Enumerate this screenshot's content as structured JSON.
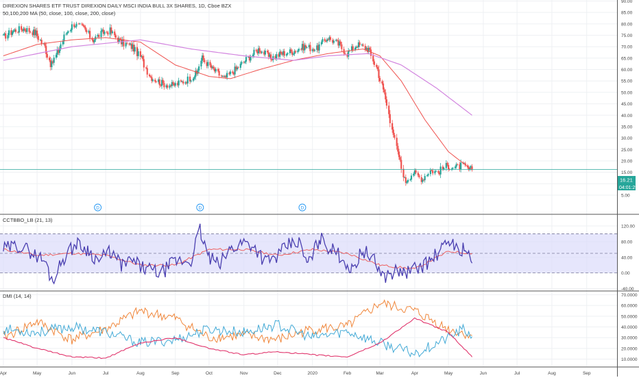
{
  "header": {
    "title": "DIREXION SHARES ETF TRUST DIREXION DAILY MSCI INDIA BULL 3X SHARES, 1D, Cboe BZX",
    "ma_label": "50,100,200 MA (50, close, 100, close, 200, close)"
  },
  "colors": {
    "grid": "#eef0f3",
    "axis_text": "#444444",
    "separator": "#555555",
    "up": "#26a69a",
    "down": "#ef5350",
    "ma50": "#ef5350",
    "ma200": "#d284df",
    "price_line": "#26a69a",
    "cct_line": "#4a3fb0",
    "cct_signal": "#ef5350",
    "cct_band": "#dcdcfb",
    "dmi_plus": "#41a9d6",
    "dmi_minus": "#f0863a",
    "adx": "#e0336b"
  },
  "current_price": {
    "value": "16.21",
    "countdown": "04:01:29"
  },
  "dividend_marker_label": "D",
  "chart_data": [
    {
      "type": "candlestick",
      "panel": "price",
      "title": "DIREXION SHARES ETF TRUST DIREXION DAILY MSCI INDIA BULL 3X SHARES, 1D, Cboe BZX",
      "ylim": [
        0,
        90
      ],
      "y_ticks": [
        "5.00",
        "10.00",
        "15.00",
        "20.00",
        "25.00",
        "30.00",
        "35.00",
        "40.00",
        "45.00",
        "50.00",
        "55.00",
        "60.00",
        "65.00",
        "70.00",
        "75.00",
        "80.00",
        "85.00",
        "90.00"
      ],
      "x_ticks": [
        "Apr",
        "May",
        "Jun",
        "Jul",
        "Aug",
        "Sep",
        "Oct",
        "Nov",
        "Dec",
        "2020",
        "Feb",
        "Mar",
        "Apr",
        "May",
        "Jun",
        "Jul",
        "Aug",
        "Sep"
      ],
      "close_series": [
        {
          "t": "2019-04-01",
          "v": 74
        },
        {
          "t": "2019-04-10",
          "v": 77
        },
        {
          "t": "2019-04-20",
          "v": 78
        },
        {
          "t": "2019-04-30",
          "v": 76
        },
        {
          "t": "2019-05-08",
          "v": 70
        },
        {
          "t": "2019-05-14",
          "v": 62
        },
        {
          "t": "2019-05-20",
          "v": 68
        },
        {
          "t": "2019-05-27",
          "v": 76
        },
        {
          "t": "2019-06-03",
          "v": 80
        },
        {
          "t": "2019-06-12",
          "v": 78
        },
        {
          "t": "2019-06-20",
          "v": 73
        },
        {
          "t": "2019-06-28",
          "v": 76
        },
        {
          "t": "2019-07-05",
          "v": 77
        },
        {
          "t": "2019-07-15",
          "v": 72
        },
        {
          "t": "2019-07-25",
          "v": 70
        },
        {
          "t": "2019-08-02",
          "v": 65
        },
        {
          "t": "2019-08-10",
          "v": 57
        },
        {
          "t": "2019-08-20",
          "v": 54
        },
        {
          "t": "2019-08-30",
          "v": 53
        },
        {
          "t": "2019-09-10",
          "v": 55
        },
        {
          "t": "2019-09-20",
          "v": 58
        },
        {
          "t": "2019-09-25",
          "v": 65
        },
        {
          "t": "2019-10-05",
          "v": 60
        },
        {
          "t": "2019-10-15",
          "v": 56
        },
        {
          "t": "2019-10-25",
          "v": 60
        },
        {
          "t": "2019-11-05",
          "v": 65
        },
        {
          "t": "2019-11-15",
          "v": 69
        },
        {
          "t": "2019-11-25",
          "v": 65
        },
        {
          "t": "2019-12-05",
          "v": 67
        },
        {
          "t": "2019-12-15",
          "v": 68
        },
        {
          "t": "2019-12-25",
          "v": 70
        },
        {
          "t": "2020-01-05",
          "v": 69
        },
        {
          "t": "2020-01-15",
          "v": 74
        },
        {
          "t": "2020-01-25",
          "v": 71
        },
        {
          "t": "2020-02-01",
          "v": 67
        },
        {
          "t": "2020-02-10",
          "v": 71
        },
        {
          "t": "2020-02-20",
          "v": 69
        },
        {
          "t": "2020-02-28",
          "v": 60
        },
        {
          "t": "2020-03-05",
          "v": 50
        },
        {
          "t": "2020-03-12",
          "v": 35
        },
        {
          "t": "2020-03-18",
          "v": 22
        },
        {
          "t": "2020-03-24",
          "v": 11
        },
        {
          "t": "2020-03-31",
          "v": 15
        },
        {
          "t": "2020-04-08",
          "v": 12
        },
        {
          "t": "2020-04-15",
          "v": 16
        },
        {
          "t": "2020-04-22",
          "v": 15
        },
        {
          "t": "2020-04-30",
          "v": 18
        },
        {
          "t": "2020-05-07",
          "v": 17
        },
        {
          "t": "2020-05-14",
          "v": 18
        },
        {
          "t": "2020-05-20",
          "v": 16
        },
        {
          "t": "2020-05-22",
          "v": 16.21
        }
      ],
      "ma50": [
        {
          "t": "2019-04-01",
          "v": 66
        },
        {
          "t": "2019-05-01",
          "v": 71
        },
        {
          "t": "2019-06-01",
          "v": 73
        },
        {
          "t": "2019-07-01",
          "v": 74
        },
        {
          "t": "2019-08-01",
          "v": 72
        },
        {
          "t": "2019-09-01",
          "v": 62
        },
        {
          "t": "2019-10-01",
          "v": 57
        },
        {
          "t": "2019-10-20",
          "v": 56
        },
        {
          "t": "2019-11-15",
          "v": 60
        },
        {
          "t": "2019-12-15",
          "v": 64
        },
        {
          "t": "2020-01-15",
          "v": 67
        },
        {
          "t": "2020-02-15",
          "v": 69
        },
        {
          "t": "2020-03-01",
          "v": 66
        },
        {
          "t": "2020-03-20",
          "v": 55
        },
        {
          "t": "2020-04-10",
          "v": 38
        },
        {
          "t": "2020-05-01",
          "v": 24
        },
        {
          "t": "2020-05-22",
          "v": 16
        }
      ],
      "ma200": [
        {
          "t": "2019-04-01",
          "v": 64
        },
        {
          "t": "2019-06-01",
          "v": 70
        },
        {
          "t": "2019-08-01",
          "v": 73
        },
        {
          "t": "2019-09-15",
          "v": 69
        },
        {
          "t": "2019-11-01",
          "v": 66
        },
        {
          "t": "2019-12-15",
          "v": 64
        },
        {
          "t": "2020-01-15",
          "v": 66
        },
        {
          "t": "2020-02-20",
          "v": 67
        },
        {
          "t": "2020-03-20",
          "v": 62
        },
        {
          "t": "2020-04-20",
          "v": 52
        },
        {
          "t": "2020-05-22",
          "v": 40
        }
      ],
      "dividend_markers": [
        "2019-06-24",
        "2019-09-23",
        "2019-12-23"
      ]
    },
    {
      "type": "line",
      "panel": "oscillator",
      "title": "CCTBBO_LB (21, 13)",
      "ylim": [
        -40,
        120
      ],
      "y_ticks": [
        "-40.00",
        "0.00",
        "40.00",
        "80.00",
        "120.00"
      ],
      "band": [
        0,
        100
      ],
      "dashed_levels": [
        0,
        50,
        100
      ],
      "series": [
        {
          "role": "osc",
          "points": [
            {
              "t": "2019-04-01",
              "v": 60
            },
            {
              "t": "2019-04-15",
              "v": 70
            },
            {
              "t": "2019-04-25",
              "v": 55
            },
            {
              "t": "2019-05-08",
              "v": 30
            },
            {
              "t": "2019-05-15",
              "v": -20
            },
            {
              "t": "2019-05-25",
              "v": 40
            },
            {
              "t": "2019-06-05",
              "v": 75
            },
            {
              "t": "2019-06-15",
              "v": 60
            },
            {
              "t": "2019-06-25",
              "v": 30
            },
            {
              "t": "2019-07-05",
              "v": 55
            },
            {
              "t": "2019-07-15",
              "v": 20
            },
            {
              "t": "2019-07-25",
              "v": 30
            },
            {
              "t": "2019-08-05",
              "v": 10
            },
            {
              "t": "2019-08-20",
              "v": 0
            },
            {
              "t": "2019-09-01",
              "v": 30
            },
            {
              "t": "2019-09-15",
              "v": 30
            },
            {
              "t": "2019-09-23",
              "v": 110
            },
            {
              "t": "2019-10-01",
              "v": 40
            },
            {
              "t": "2019-10-10",
              "v": 20
            },
            {
              "t": "2019-10-20",
              "v": 60
            },
            {
              "t": "2019-11-01",
              "v": 80
            },
            {
              "t": "2019-11-10",
              "v": 70
            },
            {
              "t": "2019-11-20",
              "v": 30
            },
            {
              "t": "2019-12-01",
              "v": 40
            },
            {
              "t": "2019-12-10",
              "v": 70
            },
            {
              "t": "2019-12-20",
              "v": 80
            },
            {
              "t": "2019-12-28",
              "v": 20
            },
            {
              "t": "2020-01-08",
              "v": 90
            },
            {
              "t": "2020-01-18",
              "v": 60
            },
            {
              "t": "2020-01-28",
              "v": 40
            },
            {
              "t": "2020-02-05",
              "v": 5
            },
            {
              "t": "2020-02-15",
              "v": 60
            },
            {
              "t": "2020-02-25",
              "v": 30
            },
            {
              "t": "2020-03-05",
              "v": -10
            },
            {
              "t": "2020-03-15",
              "v": 5
            },
            {
              "t": "2020-03-25",
              "v": 0
            },
            {
              "t": "2020-04-05",
              "v": 15
            },
            {
              "t": "2020-04-15",
              "v": 30
            },
            {
              "t": "2020-04-25",
              "v": 60
            },
            {
              "t": "2020-05-05",
              "v": 85
            },
            {
              "t": "2020-05-10",
              "v": 50
            },
            {
              "t": "2020-05-15",
              "v": 70
            },
            {
              "t": "2020-05-22",
              "v": 25
            }
          ]
        },
        {
          "role": "signal",
          "points": [
            {
              "t": "2019-04-01",
              "v": 60
            },
            {
              "t": "2019-05-01",
              "v": 45
            },
            {
              "t": "2019-06-01",
              "v": 50
            },
            {
              "t": "2019-07-01",
              "v": 45
            },
            {
              "t": "2019-08-01",
              "v": 20
            },
            {
              "t": "2019-09-01",
              "v": 20
            },
            {
              "t": "2019-10-01",
              "v": 60
            },
            {
              "t": "2019-11-01",
              "v": 60
            },
            {
              "t": "2019-12-01",
              "v": 45
            },
            {
              "t": "2020-01-01",
              "v": 60
            },
            {
              "t": "2020-02-01",
              "v": 50
            },
            {
              "t": "2020-03-01",
              "v": 20
            },
            {
              "t": "2020-04-01",
              "v": 10
            },
            {
              "t": "2020-05-01",
              "v": 55
            },
            {
              "t": "2020-05-22",
              "v": 50
            }
          ]
        }
      ]
    },
    {
      "type": "line",
      "panel": "dmi",
      "title": "DMI (14, 14)",
      "ylim": [
        5,
        70
      ],
      "y_ticks": [
        "10.0000",
        "20.0000",
        "30.0000",
        "40.0000",
        "50.0000",
        "60.0000",
        "70.0000"
      ],
      "series": [
        {
          "role": "+DI",
          "points": [
            {
              "t": "2019-04-01",
              "v": 38
            },
            {
              "t": "2019-05-01",
              "v": 35
            },
            {
              "t": "2019-06-01",
              "v": 40
            },
            {
              "t": "2019-07-01",
              "v": 35
            },
            {
              "t": "2019-08-01",
              "v": 25
            },
            {
              "t": "2019-09-01",
              "v": 28
            },
            {
              "t": "2019-10-01",
              "v": 38
            },
            {
              "t": "2019-11-01",
              "v": 35
            },
            {
              "t": "2019-12-01",
              "v": 42
            },
            {
              "t": "2020-01-01",
              "v": 30
            },
            {
              "t": "2020-02-01",
              "v": 36
            },
            {
              "t": "2020-03-01",
              "v": 25
            },
            {
              "t": "2020-04-01",
              "v": 15
            },
            {
              "t": "2020-05-01",
              "v": 30
            },
            {
              "t": "2020-05-15",
              "v": 38
            },
            {
              "t": "2020-05-22",
              "v": 31
            }
          ]
        },
        {
          "role": "-DI",
          "points": [
            {
              "t": "2019-04-01",
              "v": 30
            },
            {
              "t": "2019-05-01",
              "v": 45
            },
            {
              "t": "2019-06-01",
              "v": 28
            },
            {
              "t": "2019-07-01",
              "v": 38
            },
            {
              "t": "2019-08-01",
              "v": 55
            },
            {
              "t": "2019-09-01",
              "v": 48
            },
            {
              "t": "2019-10-01",
              "v": 30
            },
            {
              "t": "2019-11-01",
              "v": 32
            },
            {
              "t": "2019-12-01",
              "v": 28
            },
            {
              "t": "2020-01-01",
              "v": 38
            },
            {
              "t": "2020-02-01",
              "v": 40
            },
            {
              "t": "2020-03-01",
              "v": 62
            },
            {
              "t": "2020-04-01",
              "v": 55
            },
            {
              "t": "2020-05-01",
              "v": 38
            },
            {
              "t": "2020-05-22",
              "v": 32
            }
          ]
        },
        {
          "role": "ADX",
          "points": [
            {
              "t": "2019-04-01",
              "v": 30
            },
            {
              "t": "2019-05-01",
              "v": 20
            },
            {
              "t": "2019-06-01",
              "v": 12
            },
            {
              "t": "2019-07-01",
              "v": 11
            },
            {
              "t": "2019-08-01",
              "v": 25
            },
            {
              "t": "2019-09-01",
              "v": 30
            },
            {
              "t": "2019-10-01",
              "v": 20
            },
            {
              "t": "2019-11-01",
              "v": 14
            },
            {
              "t": "2019-12-01",
              "v": 17
            },
            {
              "t": "2020-01-01",
              "v": 14
            },
            {
              "t": "2020-02-01",
              "v": 12
            },
            {
              "t": "2020-03-01",
              "v": 25
            },
            {
              "t": "2020-04-01",
              "v": 48
            },
            {
              "t": "2020-05-01",
              "v": 35
            },
            {
              "t": "2020-05-22",
              "v": 12
            }
          ]
        }
      ]
    }
  ]
}
